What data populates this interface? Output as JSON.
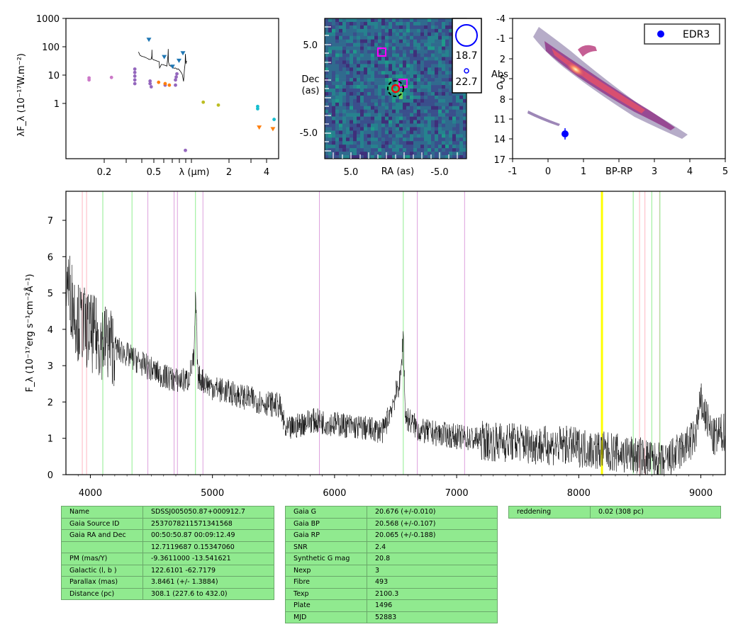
{
  "sed": {
    "ylabel": "λF_λ (10⁻¹⁷W.m⁻²)",
    "xlabel": "λ (μm)",
    "y_ticks": [
      "1000",
      "100",
      "10",
      "1"
    ],
    "x_ticks": [
      "0.2",
      "0.5",
      "2",
      "4"
    ]
  },
  "cutout": {
    "ylabel_line1": "Dec",
    "ylabel_line2": "(as)",
    "xlabel": "RA (as)",
    "y_ticks": [
      "5.0",
      "-5.0"
    ],
    "x_ticks": [
      "5.0",
      "-5.0"
    ],
    "legend_values": [
      "18.7",
      "22.7"
    ]
  },
  "hrd": {
    "ylabel_line1": "Abs",
    "ylabel_line2": "G",
    "xlabel": "BP-RP",
    "y_ticks": [
      "-4",
      "-1",
      "2",
      "5",
      "8",
      "11",
      "14",
      "17"
    ],
    "x_ticks": [
      "-1",
      "0",
      "1",
      "2",
      "3",
      "4",
      "5"
    ],
    "legend_label": "EDR3"
  },
  "spectrum": {
    "ylabel": "F_λ (10⁻¹⁷erg s⁻¹cm⁻²Å⁻¹)",
    "y_ticks": [
      "0",
      "1",
      "2",
      "3",
      "4",
      "5",
      "6",
      "7"
    ],
    "x_ticks": [
      "4000",
      "5000",
      "6000",
      "7000",
      "8000",
      "9000"
    ]
  },
  "tables": {
    "left": [
      [
        "Name",
        "SDSSJ005050.87+000912.7"
      ],
      [
        "Gaia Source ID",
        "2537078211571341568"
      ],
      [
        "Gaia RA and Dec",
        "00:50:50.87    00:09:12.49"
      ],
      [
        "",
        "12.7119687    0.15347060"
      ],
      [
        "PM (mas/Y)",
        "-9.3611000    -13.541621"
      ],
      [
        "Galactic (l, b )",
        "122.6101    -62.7179"
      ],
      [
        "Parallax (mas)",
        "3.8461 (+/- 1.3884)"
      ],
      [
        "Distance (pc)",
        "308.1 (227.6 to 432.0)"
      ]
    ],
    "middle": [
      [
        "Gaia G",
        "20.676 (+/-0.010)"
      ],
      [
        "Gaia BP",
        "20.568 (+/-0.107)"
      ],
      [
        "Gaia RP",
        "20.065 (+/-0.188)"
      ],
      [
        "SNR",
        "2.4"
      ],
      [
        "Synthetic G mag",
        "20.8"
      ],
      [
        "Nexp",
        "3"
      ],
      [
        "Fibre",
        "493"
      ],
      [
        "Texp",
        "2100.3"
      ],
      [
        "Plate",
        "1496"
      ],
      [
        "MJD",
        "52883"
      ]
    ],
    "right": [
      [
        "reddening",
        "0.02 (308 pc)"
      ]
    ]
  },
  "chart_data": [
    {
      "type": "scatter",
      "name": "sed",
      "xlabel": "λ (μm)",
      "ylabel": "λF_λ (10⁻¹⁷W.m⁻²)",
      "xscale": "log",
      "yscale": "log",
      "xlim": [
        0.1,
        5
      ],
      "ylim": [
        0.05,
        1000
      ],
      "colors": {
        "galex": "#cc79c8",
        "sdss": "#9467bd",
        "ps": "#ff7f0e",
        "wise_ul": "#1f77b4",
        "twomass": "#bcbd22",
        "wise": "#17becf",
        "spec": "#000000"
      },
      "points": [
        {
          "x": 0.153,
          "y": 13,
          "c": "galex"
        },
        {
          "x": 0.153,
          "y": 15,
          "c": "galex"
        },
        {
          "x": 0.231,
          "y": 15.5,
          "c": "galex"
        },
        {
          "x": 0.355,
          "y": 10,
          "c": "sdss"
        },
        {
          "x": 0.355,
          "y": 13,
          "c": "sdss"
        },
        {
          "x": 0.355,
          "y": 17,
          "c": "sdss"
        },
        {
          "x": 0.355,
          "y": 22,
          "c": "sdss"
        },
        {
          "x": 0.355,
          "y": 28,
          "c": "sdss"
        },
        {
          "x": 0.47,
          "y": 12,
          "c": "sdss"
        },
        {
          "x": 0.47,
          "y": 10,
          "c": "sdss"
        },
        {
          "x": 0.48,
          "y": 8,
          "c": "sdss"
        },
        {
          "x": 0.55,
          "y": 11,
          "c": "ps"
        },
        {
          "x": 0.62,
          "y": 9,
          "c": "sdss"
        },
        {
          "x": 0.62,
          "y": 10,
          "c": "ps"
        },
        {
          "x": 0.67,
          "y": 9,
          "c": "ps"
        },
        {
          "x": 0.75,
          "y": 9,
          "c": "sdss"
        },
        {
          "x": 0.75,
          "y": 13,
          "c": "sdss"
        },
        {
          "x": 0.76,
          "y": 16,
          "c": "sdss"
        },
        {
          "x": 0.77,
          "y": 20,
          "c": "sdss"
        },
        {
          "x": 0.9,
          "y": 0.09,
          "c": "sdss"
        },
        {
          "x": 1.25,
          "y": 2.7,
          "c": "twomass"
        },
        {
          "x": 1.65,
          "y": 2.2,
          "c": "twomass"
        },
        {
          "x": 3.4,
          "y": 1.7,
          "c": "wise"
        },
        {
          "x": 3.4,
          "y": 2.0,
          "c": "wise"
        },
        {
          "x": 4.6,
          "y": 0.8,
          "c": "wise"
        }
      ],
      "upper_limits": [
        {
          "x": 0.46,
          "y": 220,
          "c": "wise_ul"
        },
        {
          "x": 0.61,
          "y": 65,
          "c": "wise_ul"
        },
        {
          "x": 0.71,
          "y": 33,
          "c": "wise_ul"
        },
        {
          "x": 0.8,
          "y": 50,
          "c": "wise_ul"
        },
        {
          "x": 0.86,
          "y": 85,
          "c": "wise_ul"
        },
        {
          "x": 3.5,
          "y": 0.45,
          "c": "ps"
        },
        {
          "x": 4.5,
          "y": 0.4,
          "c": "ps"
        }
      ]
    },
    {
      "type": "heatmap",
      "name": "cutout",
      "xlabel": "RA (as)",
      "ylabel": "Dec (as)",
      "xlim": [
        8,
        -8
      ],
      "ylim": [
        -8,
        8
      ],
      "markers": [
        {
          "kind": "square",
          "x": 1.5,
          "y": 5.5,
          "color": "#ff00ff"
        },
        {
          "kind": "square",
          "x": -1.0,
          "y": 1.8,
          "color": "#ff00ff"
        },
        {
          "kind": "circle",
          "x": 0.0,
          "y": 1.0,
          "color": "#ff0000"
        },
        {
          "kind": "dashed-circle",
          "x": 0.0,
          "y": 1.0,
          "color": "#000000"
        }
      ],
      "legend": [
        {
          "label": "18.7",
          "marker": "large blue circle"
        },
        {
          "label": "22.7",
          "marker": "small blue circle"
        }
      ]
    },
    {
      "type": "scatter",
      "name": "hrd",
      "xlabel": "BP-RP",
      "ylabel": "Abs G",
      "xlim": [
        -1,
        5
      ],
      "ylim": [
        17,
        -4
      ],
      "target": {
        "x": 0.5,
        "y": 13.2,
        "yerr": 0.6,
        "label": "EDR3",
        "color": "#0000ff"
      },
      "legend_placement": "top-right"
    },
    {
      "type": "line",
      "name": "spectrum",
      "xlabel": "",
      "ylabel": "F_λ (10⁻¹⁷erg s⁻¹cm⁻²Å⁻¹)",
      "xlim": [
        3800,
        9200
      ],
      "ylim": [
        0,
        7.8
      ],
      "x": [
        3800,
        3850,
        3900,
        3950,
        4000,
        4100,
        4200,
        4300,
        4400,
        4500,
        4600,
        4700,
        4800,
        4850,
        4862,
        4880,
        5000,
        5200,
        5400,
        5550,
        5600,
        5800,
        6000,
        6200,
        6400,
        6540,
        6563,
        6580,
        6700,
        6900,
        7100,
        7300,
        7500,
        7700,
        7900,
        8100,
        8300,
        8500,
        8700,
        8850,
        8950,
        9000,
        9100,
        9200
      ],
      "y": [
        5.5,
        4.8,
        4.2,
        4.1,
        3.9,
        3.7,
        3.5,
        3.3,
        3.1,
        2.9,
        2.7,
        2.6,
        2.6,
        3.2,
        5.0,
        2.7,
        2.4,
        2.2,
        2.0,
        1.9,
        1.2,
        1.5,
        1.4,
        1.3,
        1.2,
        2.6,
        3.9,
        1.6,
        1.2,
        1.1,
        1.0,
        0.9,
        0.9,
        0.8,
        0.8,
        0.7,
        0.6,
        0.5,
        0.3,
        0.7,
        1.0,
        2.0,
        1.0,
        1.2
      ],
      "lines_pink": [
        3934,
        3969,
        8498,
        8542,
        8662
      ],
      "lines_green": [
        4102,
        4341,
        4861,
        6563,
        8446,
        8598,
        8665
      ],
      "lines_violet": [
        4471,
        4686,
        4713,
        4922,
        5876,
        6678,
        7065
      ],
      "lines_yellow": [
        8190
      ]
    }
  ]
}
